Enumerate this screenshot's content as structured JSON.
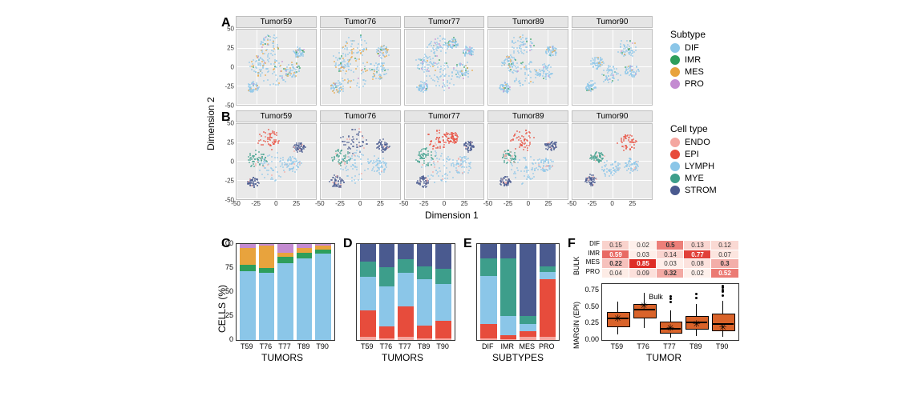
{
  "colors": {
    "subtype": {
      "DIF": "#8bc6e8",
      "IMR": "#2e9e5b",
      "MES": "#e8a33d",
      "PRO": "#c48bd1"
    },
    "celltype": {
      "ENDO": "#f4a6a0",
      "EPI": "#e74c3c",
      "LYMPH": "#8bc6e8",
      "MYE": "#3d9e8b",
      "STROM": "#4a5a8f"
    },
    "heat_low": "#fff5f0",
    "heat_mid": "#fc9272",
    "heat_high": "#de2d26",
    "box_fill": "#d9632a",
    "grid_bg": "#e9e9e9",
    "grid_line": "#ffffff",
    "facet_bg": "#e5e5e5",
    "border": "#bfbfbf"
  },
  "labels": {
    "dimension1": "Dimension 1",
    "dimension2": "Dimension 2",
    "cells_pct": "CELLS (%)",
    "tumors": "TUMORS",
    "subtypes": "SUBTYPES",
    "tumor": "TUMOR",
    "margin_epi": "MARGIN (EPI)",
    "bulk": "BULK",
    "bulk_label": "Bulk",
    "subtype_title": "Subtype",
    "celltype_title": "Cell type"
  },
  "panel_letters": {
    "A": "A",
    "B": "B",
    "C": "C",
    "D": "D",
    "E": "E",
    "F": "F"
  },
  "tumors_full": [
    "Tumor59",
    "Tumor76",
    "Tumor77",
    "Tumor89",
    "Tumor90"
  ],
  "tumors_short": [
    "T59",
    "T76",
    "T77",
    "T89",
    "T90"
  ],
  "subtype_order": [
    "DIF",
    "IMR",
    "MES",
    "PRO"
  ],
  "celltype_order": [
    "ENDO",
    "EPI",
    "LYMPH",
    "MYE",
    "STROM"
  ],
  "scatter": {
    "xlim": [
      -50,
      50
    ],
    "ylim": [
      -50,
      50
    ],
    "xticks": [
      -50,
      -25,
      0,
      25
    ],
    "yticks": [
      -50,
      -25,
      0,
      25,
      50
    ],
    "clusters": {
      "T59": [
        [
          -10,
          28,
          12
        ],
        [
          -25,
          2,
          10
        ],
        [
          -5,
          -8,
          16
        ],
        [
          20,
          -5,
          9
        ],
        [
          28,
          18,
          6
        ],
        [
          -30,
          -28,
          6
        ]
      ],
      "T76": [
        [
          -8,
          28,
          14
        ],
        [
          -25,
          5,
          10
        ],
        [
          -5,
          -8,
          18
        ],
        [
          22,
          -6,
          10
        ],
        [
          28,
          20,
          7
        ],
        [
          -30,
          -28,
          7
        ]
      ],
      "T77": [
        [
          -8,
          28,
          12
        ],
        [
          -25,
          5,
          10
        ],
        [
          -5,
          -10,
          18
        ],
        [
          22,
          -6,
          10
        ],
        [
          30,
          20,
          6
        ],
        [
          -28,
          -28,
          6
        ],
        [
          10,
          30,
          6
        ]
      ],
      "T89": [
        [
          -8,
          28,
          12
        ],
        [
          -25,
          5,
          8
        ],
        [
          -5,
          -10,
          16
        ],
        [
          20,
          -6,
          9
        ],
        [
          28,
          20,
          6
        ],
        [
          -30,
          -28,
          6
        ]
      ],
      "T90": [
        [
          18,
          24,
          10
        ],
        [
          -20,
          5,
          7
        ],
        [
          -2,
          -10,
          10
        ],
        [
          24,
          -6,
          8
        ],
        [
          -28,
          -26,
          6
        ]
      ]
    },
    "subtype_weights": {
      "T59": {
        "DIF": 0.72,
        "IMR": 0.06,
        "MES": 0.18,
        "PRO": 0.04
      },
      "T76": {
        "DIF": 0.7,
        "IMR": 0.05,
        "MES": 0.23,
        "PRO": 0.02
      },
      "T77": {
        "DIF": 0.8,
        "IMR": 0.07,
        "MES": 0.04,
        "PRO": 0.09
      },
      "T89": {
        "DIF": 0.85,
        "IMR": 0.06,
        "MES": 0.05,
        "PRO": 0.04
      },
      "T90": {
        "DIF": 0.9,
        "IMR": 0.04,
        "MES": 0.04,
        "PRO": 0.02
      }
    },
    "celltype_clusters": {
      "T59": {
        "0": "EPI",
        "1": "MYE",
        "2": "LYMPH",
        "3": "LYMPH",
        "4": "STROM",
        "5": "STROM"
      },
      "T76": {
        "0": "STROM",
        "1": "MYE",
        "2": "LYMPH",
        "3": "LYMPH",
        "4": "STROM",
        "5": "STROM"
      },
      "T77": {
        "0": "EPI",
        "1": "MYE",
        "2": "LYMPH",
        "3": "LYMPH",
        "4": "STROM",
        "5": "STROM",
        "6": "EPI"
      },
      "T89": {
        "0": "EPI",
        "1": "MYE",
        "2": "LYMPH",
        "3": "LYMPH",
        "4": "STROM",
        "5": "STROM"
      },
      "T90": {
        "0": "EPI",
        "1": "MYE",
        "2": "LYMPH",
        "3": "LYMPH",
        "4": "STROM"
      }
    },
    "density_per_cluster": 55
  },
  "barC": {
    "yticks": [
      0,
      25,
      50,
      75,
      100
    ],
    "stacks": {
      "T59": [
        [
          "DIF",
          72
        ],
        [
          "IMR",
          6
        ],
        [
          "MES",
          18
        ],
        [
          "PRO",
          4
        ]
      ],
      "T76": [
        [
          "DIF",
          70
        ],
        [
          "IMR",
          5
        ],
        [
          "MES",
          23
        ],
        [
          "PRO",
          2
        ]
      ],
      "T77": [
        [
          "DIF",
          80
        ],
        [
          "IMR",
          7
        ],
        [
          "MES",
          4
        ],
        [
          "PRO",
          9
        ]
      ],
      "T89": [
        [
          "DIF",
          85
        ],
        [
          "IMR",
          6
        ],
        [
          "MES",
          5
        ],
        [
          "PRO",
          4
        ]
      ],
      "T90": [
        [
          "DIF",
          90
        ],
        [
          "IMR",
          4
        ],
        [
          "MES",
          4
        ],
        [
          "PRO",
          2
        ]
      ]
    }
  },
  "barD": {
    "yticks": [
      0,
      25,
      50,
      75,
      100
    ],
    "stacks": {
      "T59": [
        [
          "ENDO",
          3
        ],
        [
          "EPI",
          28
        ],
        [
          "LYMPH",
          35
        ],
        [
          "MYE",
          16
        ],
        [
          "STROM",
          18
        ]
      ],
      "T76": [
        [
          "ENDO",
          2
        ],
        [
          "EPI",
          12
        ],
        [
          "LYMPH",
          42
        ],
        [
          "MYE",
          20
        ],
        [
          "STROM",
          24
        ]
      ],
      "T77": [
        [
          "ENDO",
          3
        ],
        [
          "EPI",
          32
        ],
        [
          "LYMPH",
          35
        ],
        [
          "MYE",
          14
        ],
        [
          "STROM",
          16
        ]
      ],
      "T89": [
        [
          "ENDO",
          2
        ],
        [
          "EPI",
          13
        ],
        [
          "LYMPH",
          48
        ],
        [
          "MYE",
          14
        ],
        [
          "STROM",
          23
        ]
      ],
      "T90": [
        [
          "ENDO",
          2
        ],
        [
          "EPI",
          18
        ],
        [
          "LYMPH",
          38
        ],
        [
          "MYE",
          16
        ],
        [
          "STROM",
          26
        ]
      ]
    }
  },
  "barE": {
    "yticks": [
      0,
      25,
      50,
      75,
      100
    ],
    "stacks": {
      "DIF": [
        [
          "ENDO",
          2
        ],
        [
          "EPI",
          15
        ],
        [
          "LYMPH",
          50
        ],
        [
          "MYE",
          18
        ],
        [
          "STROM",
          15
        ]
      ],
      "IMR": [
        [
          "ENDO",
          1
        ],
        [
          "EPI",
          4
        ],
        [
          "LYMPH",
          20
        ],
        [
          "MYE",
          60
        ],
        [
          "STROM",
          15
        ]
      ],
      "MES": [
        [
          "ENDO",
          3
        ],
        [
          "EPI",
          6
        ],
        [
          "LYMPH",
          8
        ],
        [
          "MYE",
          8
        ],
        [
          "STROM",
          75
        ]
      ],
      "PRO": [
        [
          "ENDO",
          3
        ],
        [
          "EPI",
          60
        ],
        [
          "LYMPH",
          8
        ],
        [
          "MYE",
          6
        ],
        [
          "STROM",
          23
        ]
      ]
    }
  },
  "heatF": {
    "rows": [
      "DIF",
      "IMR",
      "MES",
      "PRO"
    ],
    "cols": [
      "T59",
      "T76",
      "T77",
      "T89",
      "T90"
    ],
    "values": [
      [
        0.15,
        0.02,
        0.5,
        0.13,
        0.12
      ],
      [
        0.59,
        0.03,
        0.14,
        0.77,
        0.07
      ],
      [
        0.22,
        0.85,
        0.03,
        0.08,
        0.3
      ],
      [
        0.04,
        0.09,
        0.32,
        0.02,
        0.52
      ]
    ],
    "bold": [
      [
        0,
        2
      ],
      [
        1,
        0
      ],
      [
        1,
        3
      ],
      [
        2,
        0
      ],
      [
        2,
        1
      ],
      [
        2,
        4
      ],
      [
        3,
        2
      ],
      [
        3,
        4
      ]
    ]
  },
  "boxF": {
    "yticks": [
      0.0,
      0.25,
      0.5,
      0.75
    ],
    "ylim": [
      0,
      0.85
    ],
    "boxes": {
      "T59": {
        "q1": 0.22,
        "med": 0.33,
        "q3": 0.42,
        "lw": 0.08,
        "uw": 0.58,
        "out": [],
        "bulk": 0.33
      },
      "T76": {
        "q1": 0.35,
        "med": 0.46,
        "q3": 0.55,
        "lw": 0.18,
        "uw": 0.72,
        "out": [],
        "bulk": 0.52
      },
      "T77": {
        "q1": 0.12,
        "med": 0.17,
        "q3": 0.28,
        "lw": 0.04,
        "uw": 0.45,
        "out": [
          0.58,
          0.62,
          0.66
        ],
        "bulk": 0.18
      },
      "T89": {
        "q1": 0.18,
        "med": 0.27,
        "q3": 0.36,
        "lw": 0.06,
        "uw": 0.55,
        "out": [
          0.64,
          0.7
        ],
        "bulk": 0.24
      },
      "T90": {
        "q1": 0.16,
        "med": 0.24,
        "q3": 0.4,
        "lw": 0.05,
        "uw": 0.6,
        "out": [
          0.68,
          0.74,
          0.76,
          0.8,
          0.82
        ],
        "bulk": 0.2
      }
    }
  }
}
